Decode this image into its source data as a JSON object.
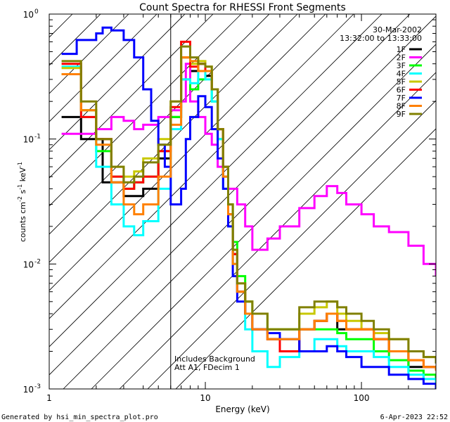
{
  "chart_data": {
    "type": "line",
    "title": "Count Spectra for RHESSI Front Segments",
    "xlabel": "Energy (keV)",
    "ylabel": "counts cm^-2 s^-1 keV^-1",
    "xscale": "log",
    "yscale": "log",
    "xlim": [
      1,
      300
    ],
    "ylim": [
      0.001,
      1
    ],
    "x_tick_labels": [
      "1",
      "10",
      "100"
    ],
    "y_tick_labels": [
      {
        "base": "10",
        "exp": "-3"
      },
      {
        "base": "10",
        "exp": "-2"
      },
      {
        "base": "10",
        "exp": "-1"
      },
      {
        "base": "10",
        "exp": "0"
      }
    ],
    "date": "30-Mar-2002",
    "time_range": "13:32:00 to 13:33:00",
    "excluded_region_keV": [
      1,
      6
    ],
    "annotations": [
      "Includes Background",
      "Att A1, FDecim 1"
    ],
    "footer_left": "Generated by hsi_min_spectra_plot.pro",
    "footer_right": "6-Apr-2023 22:52",
    "series": [
      {
        "name": "1F",
        "color": "#000000",
        "points": [
          [
            1.2,
            0.15
          ],
          [
            1.6,
            0.1
          ],
          [
            2.2,
            0.045
          ],
          [
            3,
            0.035
          ],
          [
            4,
            0.04
          ],
          [
            5,
            0.07
          ],
          [
            6,
            0.15
          ],
          [
            7,
            0.45
          ],
          [
            8,
            0.35
          ],
          [
            9,
            0.4
          ],
          [
            10,
            0.32
          ],
          [
            11,
            0.25
          ],
          [
            12,
            0.12
          ],
          [
            13,
            0.06
          ],
          [
            14,
            0.025
          ],
          [
            15,
            0.012
          ],
          [
            16,
            0.006
          ],
          [
            18,
            0.004
          ],
          [
            20,
            0.003
          ],
          [
            25,
            0.0025
          ],
          [
            30,
            0.002
          ],
          [
            40,
            0.003
          ],
          [
            50,
            0.0035
          ],
          [
            60,
            0.004
          ],
          [
            70,
            0.003
          ],
          [
            80,
            0.003
          ],
          [
            100,
            0.003
          ],
          [
            120,
            0.0025
          ],
          [
            150,
            0.002
          ],
          [
            200,
            0.0015
          ],
          [
            250,
            0.0015
          ],
          [
            300,
            0.0014
          ]
        ]
      },
      {
        "name": "2F",
        "color": "#ff00ff",
        "points": [
          [
            1.2,
            0.11
          ],
          [
            1.5,
            0.11
          ],
          [
            2,
            0.12
          ],
          [
            2.5,
            0.15
          ],
          [
            3,
            0.14
          ],
          [
            3.5,
            0.12
          ],
          [
            4,
            0.13
          ],
          [
            5,
            0.15
          ],
          [
            6,
            0.17
          ],
          [
            7,
            0.2
          ],
          [
            7.5,
            0.4
          ],
          [
            8,
            0.2
          ],
          [
            9,
            0.15
          ],
          [
            10,
            0.11
          ],
          [
            11,
            0.09
          ],
          [
            12,
            0.06
          ],
          [
            13,
            0.05
          ],
          [
            14,
            0.04
          ],
          [
            16,
            0.03
          ],
          [
            18,
            0.02
          ],
          [
            20,
            0.013
          ],
          [
            25,
            0.016
          ],
          [
            30,
            0.02
          ],
          [
            40,
            0.028
          ],
          [
            50,
            0.035
          ],
          [
            60,
            0.042
          ],
          [
            70,
            0.037
          ],
          [
            80,
            0.03
          ],
          [
            100,
            0.025
          ],
          [
            120,
            0.02
          ],
          [
            150,
            0.018
          ],
          [
            200,
            0.014
          ],
          [
            250,
            0.01
          ],
          [
            300,
            0.008
          ]
        ]
      },
      {
        "name": "3F",
        "color": "#00ff00",
        "points": [
          [
            1.2,
            0.33
          ],
          [
            1.6,
            0.17
          ],
          [
            2,
            0.08
          ],
          [
            2.5,
            0.05
          ],
          [
            3,
            0.04
          ],
          [
            3.5,
            0.045
          ],
          [
            4,
            0.05
          ],
          [
            5,
            0.08
          ],
          [
            6,
            0.15
          ],
          [
            7,
            0.3
          ],
          [
            8,
            0.25
          ],
          [
            9,
            0.3
          ],
          [
            10,
            0.35
          ],
          [
            11,
            0.2
          ],
          [
            12,
            0.1
          ],
          [
            13,
            0.05
          ],
          [
            14,
            0.03
          ],
          [
            15,
            0.015
          ],
          [
            16,
            0.008
          ],
          [
            18,
            0.005
          ],
          [
            20,
            0.004
          ],
          [
            25,
            0.003
          ],
          [
            30,
            0.003
          ],
          [
            40,
            0.003
          ],
          [
            50,
            0.003
          ],
          [
            60,
            0.003
          ],
          [
            70,
            0.0028
          ],
          [
            80,
            0.0025
          ],
          [
            100,
            0.0025
          ],
          [
            120,
            0.002
          ],
          [
            150,
            0.0017
          ],
          [
            200,
            0.0014
          ],
          [
            250,
            0.0013
          ],
          [
            300,
            0.0012
          ]
        ]
      },
      {
        "name": "4F",
        "color": "#00ffff",
        "points": [
          [
            1.2,
            0.38
          ],
          [
            1.6,
            0.15
          ],
          [
            2,
            0.06
          ],
          [
            2.5,
            0.03
          ],
          [
            3,
            0.02
          ],
          [
            3.5,
            0.017
          ],
          [
            4,
            0.022
          ],
          [
            5,
            0.04
          ],
          [
            6,
            0.12
          ],
          [
            7,
            0.3
          ],
          [
            8,
            0.28
          ],
          [
            9,
            0.35
          ],
          [
            10,
            0.3
          ],
          [
            11,
            0.2
          ],
          [
            12,
            0.1
          ],
          [
            13,
            0.04
          ],
          [
            14,
            0.02
          ],
          [
            15,
            0.01
          ],
          [
            16,
            0.006
          ],
          [
            18,
            0.003
          ],
          [
            20,
            0.002
          ],
          [
            25,
            0.0015
          ],
          [
            30,
            0.0018
          ],
          [
            40,
            0.002
          ],
          [
            50,
            0.0025
          ],
          [
            60,
            0.0025
          ],
          [
            70,
            0.0022
          ],
          [
            80,
            0.002
          ],
          [
            100,
            0.002
          ],
          [
            120,
            0.0018
          ],
          [
            150,
            0.0015
          ],
          [
            200,
            0.0013
          ],
          [
            250,
            0.0012
          ],
          [
            300,
            0.0011
          ]
        ]
      },
      {
        "name": "5F",
        "color": "#c8c800",
        "points": [
          [
            1.2,
            0.37
          ],
          [
            1.6,
            0.17
          ],
          [
            2,
            0.1
          ],
          [
            2.5,
            0.06
          ],
          [
            3,
            0.05
          ],
          [
            3.5,
            0.055
          ],
          [
            4,
            0.07
          ],
          [
            5,
            0.1
          ],
          [
            6,
            0.2
          ],
          [
            7,
            0.45
          ],
          [
            8,
            0.4
          ],
          [
            9,
            0.42
          ],
          [
            10,
            0.38
          ],
          [
            11,
            0.25
          ],
          [
            12,
            0.12
          ],
          [
            13,
            0.06
          ],
          [
            14,
            0.03
          ],
          [
            15,
            0.013
          ],
          [
            16,
            0.007
          ],
          [
            18,
            0.005
          ],
          [
            20,
            0.004
          ],
          [
            25,
            0.003
          ],
          [
            30,
            0.003
          ],
          [
            40,
            0.004
          ],
          [
            50,
            0.0045
          ],
          [
            60,
            0.005
          ],
          [
            70,
            0.004
          ],
          [
            80,
            0.0035
          ],
          [
            100,
            0.003
          ],
          [
            120,
            0.0028
          ],
          [
            150,
            0.0025
          ],
          [
            200,
            0.002
          ],
          [
            250,
            0.0018
          ],
          [
            300,
            0.0016
          ]
        ]
      },
      {
        "name": "6F",
        "color": "#ff0000",
        "points": [
          [
            1.2,
            0.4
          ],
          [
            1.6,
            0.15
          ],
          [
            2,
            0.1
          ],
          [
            2.5,
            0.05
          ],
          [
            3,
            0.04
          ],
          [
            3.5,
            0.045
          ],
          [
            4,
            0.05
          ],
          [
            5,
            0.08
          ],
          [
            6,
            0.18
          ],
          [
            7,
            0.6
          ],
          [
            8,
            0.38
          ],
          [
            9,
            0.4
          ],
          [
            10,
            0.35
          ],
          [
            11,
            0.25
          ],
          [
            12,
            0.12
          ],
          [
            13,
            0.06
          ],
          [
            14,
            0.025
          ],
          [
            15,
            0.012
          ],
          [
            16,
            0.006
          ],
          [
            18,
            0.004
          ],
          [
            20,
            0.003
          ],
          [
            25,
            0.0025
          ],
          [
            30,
            0.002
          ],
          [
            40,
            0.003
          ],
          [
            50,
            0.0035
          ],
          [
            60,
            0.004
          ],
          [
            70,
            0.0035
          ],
          [
            80,
            0.003
          ],
          [
            100,
            0.003
          ],
          [
            120,
            0.0025
          ],
          [
            150,
            0.002
          ],
          [
            200,
            0.0017
          ],
          [
            250,
            0.0015
          ],
          [
            300,
            0.0014
          ]
        ]
      },
      {
        "name": "7F",
        "color": "#0000ff",
        "points": [
          [
            1.2,
            0.48
          ],
          [
            1.5,
            0.62
          ],
          [
            2,
            0.7
          ],
          [
            2.2,
            0.78
          ],
          [
            2.5,
            0.74
          ],
          [
            3,
            0.62
          ],
          [
            3.5,
            0.45
          ],
          [
            4,
            0.25
          ],
          [
            4.5,
            0.14
          ],
          [
            5,
            0.09
          ],
          [
            5.5,
            0.06
          ],
          [
            6,
            0.03
          ],
          [
            7,
            0.04
          ],
          [
            7.5,
            0.1
          ],
          [
            8,
            0.15
          ],
          [
            9,
            0.22
          ],
          [
            10,
            0.18
          ],
          [
            11,
            0.12
          ],
          [
            12,
            0.07
          ],
          [
            13,
            0.04
          ],
          [
            14,
            0.02
          ],
          [
            15,
            0.008
          ],
          [
            16,
            0.005
          ],
          [
            18,
            0.004
          ],
          [
            20,
            0.003
          ],
          [
            25,
            0.0028
          ],
          [
            30,
            0.0025
          ],
          [
            40,
            0.002
          ],
          [
            50,
            0.002
          ],
          [
            60,
            0.0022
          ],
          [
            70,
            0.002
          ],
          [
            80,
            0.0018
          ],
          [
            100,
            0.0015
          ],
          [
            120,
            0.0015
          ],
          [
            150,
            0.0013
          ],
          [
            200,
            0.0012
          ],
          [
            250,
            0.0011
          ],
          [
            300,
            0.001
          ]
        ]
      },
      {
        "name": "8F",
        "color": "#ff8000",
        "points": [
          [
            1.2,
            0.33
          ],
          [
            1.6,
            0.17
          ],
          [
            2,
            0.09
          ],
          [
            2.5,
            0.045
          ],
          [
            3,
            0.03
          ],
          [
            3.5,
            0.025
          ],
          [
            4,
            0.03
          ],
          [
            5,
            0.05
          ],
          [
            6,
            0.13
          ],
          [
            7,
            0.45
          ],
          [
            8,
            0.42
          ],
          [
            9,
            0.35
          ],
          [
            10,
            0.35
          ],
          [
            11,
            0.25
          ],
          [
            12,
            0.12
          ],
          [
            13,
            0.05
          ],
          [
            14,
            0.025
          ],
          [
            15,
            0.01
          ],
          [
            16,
            0.006
          ],
          [
            18,
            0.004
          ],
          [
            20,
            0.003
          ],
          [
            25,
            0.0025
          ],
          [
            30,
            0.0025
          ],
          [
            40,
            0.003
          ],
          [
            50,
            0.0035
          ],
          [
            60,
            0.004
          ],
          [
            70,
            0.0035
          ],
          [
            80,
            0.003
          ],
          [
            100,
            0.003
          ],
          [
            120,
            0.0025
          ],
          [
            150,
            0.002
          ],
          [
            200,
            0.0017
          ],
          [
            250,
            0.0015
          ],
          [
            300,
            0.0014
          ]
        ]
      },
      {
        "name": "9F",
        "color": "#808000",
        "points": [
          [
            1.2,
            0.42
          ],
          [
            1.6,
            0.2
          ],
          [
            2,
            0.1
          ],
          [
            2.5,
            0.06
          ],
          [
            3,
            0.045
          ],
          [
            3.5,
            0.05
          ],
          [
            4,
            0.065
          ],
          [
            5,
            0.09
          ],
          [
            6,
            0.2
          ],
          [
            7,
            0.55
          ],
          [
            8,
            0.45
          ],
          [
            9,
            0.4
          ],
          [
            10,
            0.38
          ],
          [
            11,
            0.25
          ],
          [
            12,
            0.12
          ],
          [
            13,
            0.06
          ],
          [
            14,
            0.03
          ],
          [
            15,
            0.013
          ],
          [
            16,
            0.007
          ],
          [
            18,
            0.005
          ],
          [
            20,
            0.004
          ],
          [
            25,
            0.003
          ],
          [
            30,
            0.003
          ],
          [
            40,
            0.0045
          ],
          [
            50,
            0.005
          ],
          [
            60,
            0.005
          ],
          [
            70,
            0.0045
          ],
          [
            80,
            0.004
          ],
          [
            100,
            0.0035
          ],
          [
            120,
            0.003
          ],
          [
            150,
            0.0025
          ],
          [
            200,
            0.002
          ],
          [
            250,
            0.0018
          ],
          [
            300,
            0.0016
          ]
        ]
      }
    ]
  }
}
